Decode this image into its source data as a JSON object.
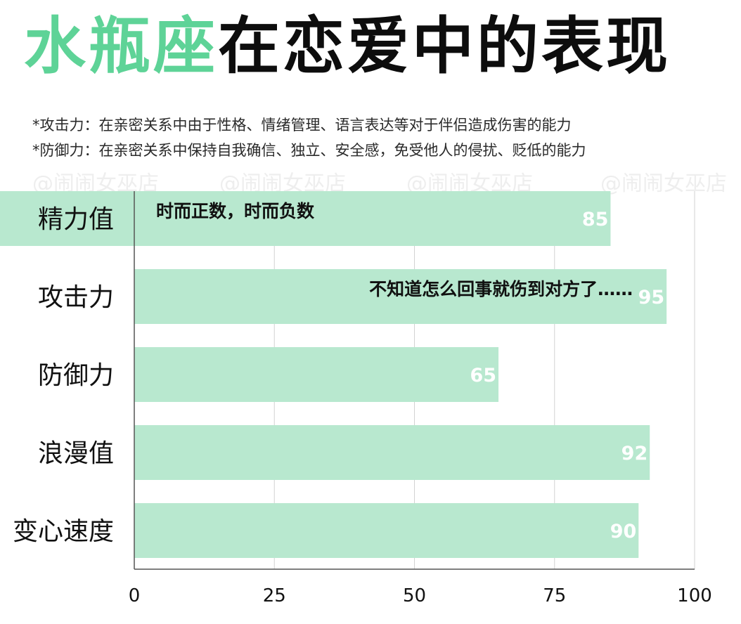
{
  "title": {
    "accent": "水瓶座",
    "rest": "在恋爱中的表现"
  },
  "notes": [
    "*攻击力：在亲密关系中由于性格、情绪管理、语言表达等对于伴侣造成伤害的能力",
    "*防御力：在亲密关系中保持自我确信、独立、安全感，免受他人的侵扰、贬低的能力"
  ],
  "watermark": "@闹闹女巫店",
  "colors": {
    "accent": "#5ed397",
    "bar": "#b8e8cf",
    "highlight": "#b8e8cf",
    "grid": "#d2d2d2",
    "axis": "#555555"
  },
  "chart_data": {
    "type": "bar",
    "orientation": "horizontal",
    "categories": [
      "精力值",
      "攻击力",
      "防御力",
      "浪漫值",
      "变心速度"
    ],
    "values": [
      85,
      95,
      65,
      92,
      90
    ],
    "annotations": [
      "时而正数，时而负数",
      "不知道怎么回事就伤到对方了……",
      "",
      "",
      ""
    ],
    "xlim": [
      0,
      100
    ],
    "xticks": [
      0,
      25,
      50,
      75,
      100
    ],
    "grid": true,
    "highlighted_category": "精力值"
  }
}
